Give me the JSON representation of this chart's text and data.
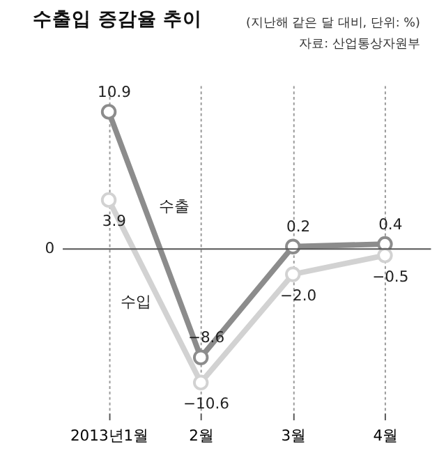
{
  "chart_data": {
    "type": "line",
    "title": "수출입 증감율 추이",
    "annotations": [
      "(지난해 같은 달 대비, 단위: %)",
      "자료: 산업통상자원부"
    ],
    "categories": [
      "2013년1월",
      "2월",
      "3월",
      "4월"
    ],
    "series": [
      {
        "name": "수출",
        "color": "#8c8c8c",
        "values": [
          10.9,
          -8.6,
          0.2,
          0.4
        ],
        "value_labels": [
          "10.9",
          "−8.6",
          "0.2",
          "0.4"
        ]
      },
      {
        "name": "수입",
        "color": "#d2d2d2",
        "values": [
          3.9,
          -10.6,
          -2.0,
          -0.5
        ],
        "value_labels": [
          "3.9",
          "−10.6",
          "−2.0",
          "−0.5"
        ]
      }
    ],
    "ylim": [
      -13,
      13
    ],
    "ref_lines": [
      {
        "axis": "y",
        "value": 0,
        "label": "0",
        "color": "#555555"
      }
    ],
    "grid": "x",
    "marker": "circle",
    "line_style": "solid"
  }
}
